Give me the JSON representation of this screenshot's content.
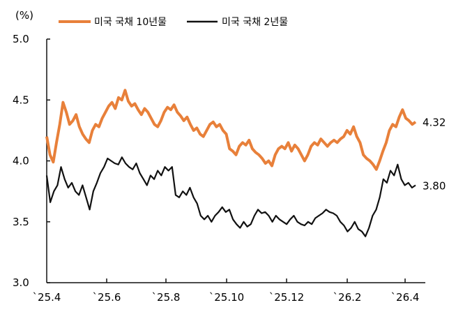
{
  "chart_data": {
    "type": "line",
    "title": "",
    "ylabel": "(%)",
    "xlabel": "",
    "ylim": [
      3.0,
      5.0
    ],
    "yticks": [
      "5.0",
      "4.5",
      "4.0",
      "3.5",
      "3.0"
    ],
    "xticks": [
      "`25.4",
      "`25.6",
      "`25.8",
      "`25.10",
      "`25.12",
      "`26.2",
      "`26.4"
    ],
    "grid": false,
    "legend_position": "top",
    "series": [
      {
        "name": "미국 국채 10년물",
        "color": "#E8803A",
        "end_label": "4.32",
        "values": [
          4.2,
          4.05,
          3.99,
          4.15,
          4.3,
          4.48,
          4.4,
          4.3,
          4.33,
          4.38,
          4.28,
          4.22,
          4.18,
          4.15,
          4.25,
          4.3,
          4.28,
          4.35,
          4.4,
          4.45,
          4.48,
          4.43,
          4.52,
          4.5,
          4.58,
          4.49,
          4.45,
          4.47,
          4.42,
          4.38,
          4.43,
          4.4,
          4.35,
          4.3,
          4.28,
          4.33,
          4.4,
          4.44,
          4.42,
          4.46,
          4.4,
          4.37,
          4.33,
          4.36,
          4.3,
          4.25,
          4.27,
          4.22,
          4.2,
          4.25,
          4.3,
          4.32,
          4.28,
          4.3,
          4.25,
          4.22,
          4.1,
          4.08,
          4.05,
          4.12,
          4.15,
          4.13,
          4.17,
          4.1,
          4.07,
          4.05,
          4.02,
          3.98,
          4.0,
          3.96,
          4.05,
          4.1,
          4.12,
          4.1,
          4.15,
          4.08,
          4.13,
          4.1,
          4.05,
          4.0,
          4.05,
          4.12,
          4.15,
          4.13,
          4.18,
          4.15,
          4.12,
          4.15,
          4.17,
          4.15,
          4.18,
          4.2,
          4.25,
          4.22,
          4.28,
          4.2,
          4.15,
          4.05,
          4.02,
          4.0,
          3.97,
          3.93,
          4.0,
          4.08,
          4.15,
          4.25,
          4.3,
          4.28,
          4.36,
          4.42,
          4.35,
          4.33,
          4.3,
          4.32
        ],
        "last": 4.32
      },
      {
        "name": "미국 국채 2년물",
        "color": "#111111",
        "end_label": "3.80",
        "values": [
          3.88,
          3.66,
          3.75,
          3.8,
          3.95,
          3.85,
          3.78,
          3.82,
          3.75,
          3.72,
          3.8,
          3.7,
          3.6,
          3.75,
          3.82,
          3.9,
          3.95,
          4.02,
          4.0,
          3.98,
          3.97,
          4.03,
          3.98,
          3.95,
          3.93,
          3.98,
          3.9,
          3.85,
          3.8,
          3.88,
          3.85,
          3.92,
          3.88,
          3.95,
          3.92,
          3.95,
          3.72,
          3.7,
          3.75,
          3.72,
          3.78,
          3.7,
          3.65,
          3.55,
          3.52,
          3.55,
          3.5,
          3.55,
          3.58,
          3.62,
          3.58,
          3.6,
          3.52,
          3.48,
          3.45,
          3.5,
          3.46,
          3.48,
          3.55,
          3.6,
          3.57,
          3.58,
          3.55,
          3.5,
          3.55,
          3.52,
          3.5,
          3.48,
          3.52,
          3.55,
          3.5,
          3.48,
          3.47,
          3.5,
          3.48,
          3.53,
          3.55,
          3.57,
          3.6,
          3.58,
          3.57,
          3.55,
          3.5,
          3.47,
          3.42,
          3.45,
          3.5,
          3.44,
          3.42,
          3.38,
          3.45,
          3.55,
          3.6,
          3.7,
          3.85,
          3.82,
          3.92,
          3.88,
          3.97,
          3.85,
          3.8,
          3.82,
          3.78,
          3.8
        ],
        "last": 3.8
      }
    ]
  },
  "legend": {
    "items": [
      {
        "label": "미국 국채 10년물",
        "color": "#E8803A"
      },
      {
        "label": "미국 국채 2년물",
        "color": "#111111"
      }
    ]
  },
  "axis": {
    "unit_label": "(%)"
  }
}
